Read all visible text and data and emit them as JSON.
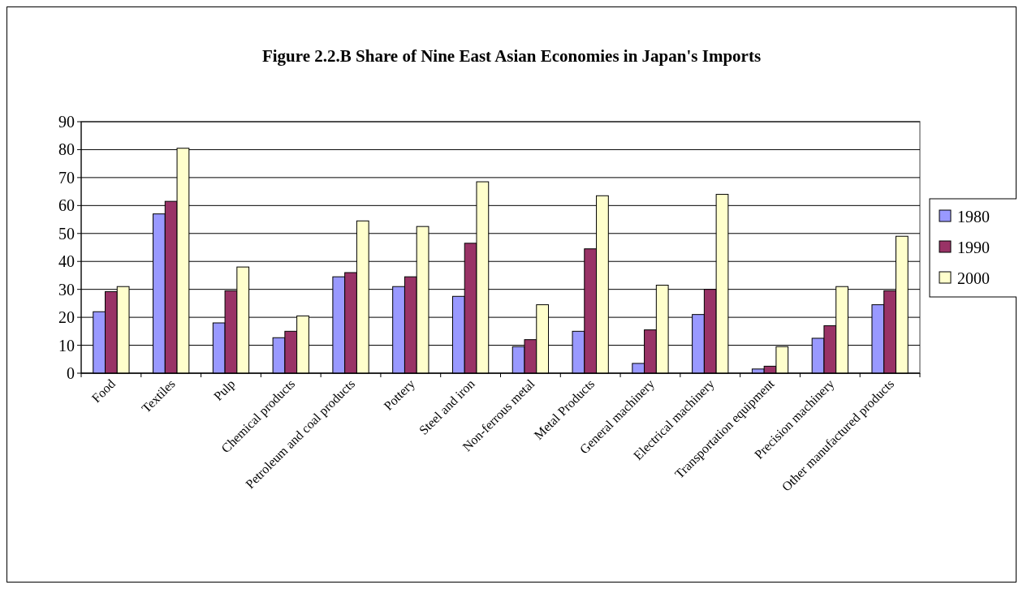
{
  "chart_data": {
    "type": "bar",
    "title": "Figure 2.2.B Share of Nine East Asian Economies in Japan's Imports",
    "categories": [
      "Food",
      "Textiles",
      "Pulp",
      "Chemical products",
      "Petroleum and coal products",
      "Pottery",
      "Steel and iron",
      "Non-ferrous metal",
      "Metal Products",
      "General machinery",
      "Electrical machinery",
      "Transportation equipment",
      "Precision machinery",
      "Other manufactured products"
    ],
    "series": [
      {
        "name": "1980",
        "color": "#9999ff",
        "values": [
          22,
          57,
          18,
          12.7,
          34.5,
          31,
          27.5,
          9.5,
          15,
          3.5,
          21,
          1.5,
          12.5,
          24.5
        ]
      },
      {
        "name": "1990",
        "color": "#993366",
        "values": [
          29.2,
          61.5,
          29.5,
          15,
          36,
          34.5,
          46.5,
          12,
          44.5,
          15.5,
          30,
          2.5,
          17,
          29.5
        ]
      },
      {
        "name": "2000",
        "color": "#ffffcc",
        "values": [
          31,
          80.5,
          38,
          20.5,
          54.5,
          52.5,
          68.5,
          24.5,
          63.5,
          31.5,
          64,
          9.5,
          31,
          49
        ]
      }
    ],
    "ylim": [
      0,
      90
    ],
    "yticks": [
      0,
      10,
      20,
      30,
      40,
      50,
      60,
      70,
      80,
      90
    ],
    "grid": "y",
    "legend": "right"
  }
}
